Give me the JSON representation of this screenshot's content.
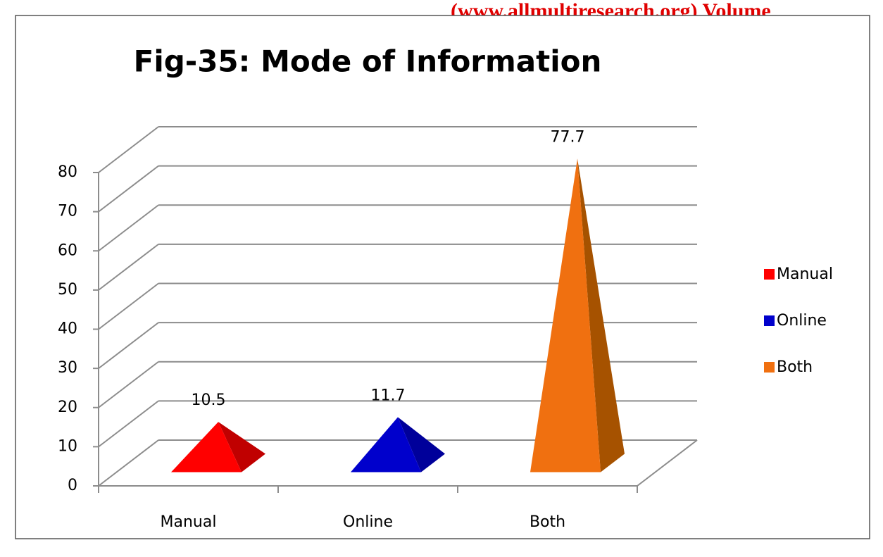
{
  "header": "(www.allmultiresearch.org) Volume",
  "chart_data": {
    "type": "bar",
    "bar_shape": "pyramid",
    "title": "Fig-35: Mode of Information",
    "categories": [
      "Manual",
      "Online",
      "Both"
    ],
    "values": [
      10.5,
      11.7,
      77.7
    ],
    "colors": [
      "#ff0000",
      "#0000cc",
      "#f07010"
    ],
    "side_colors": [
      "#c00000",
      "#00009a",
      "#a65200"
    ],
    "ylim": [
      0,
      80
    ],
    "yticks": [
      0,
      10,
      20,
      30,
      40,
      50,
      60,
      70,
      80
    ],
    "grid": true,
    "legend": "right"
  }
}
